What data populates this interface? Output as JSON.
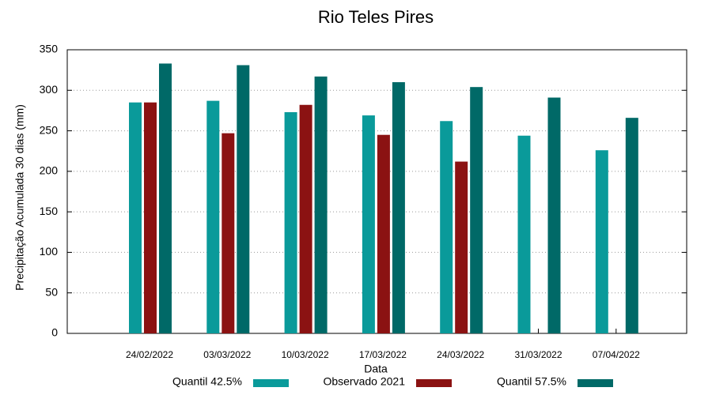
{
  "chart_data": {
    "type": "bar",
    "title": "Rio Teles Pires",
    "x_label": "Data",
    "y_label": "Precipitação Acumulada 30 dias (mm)",
    "categories": [
      "24/02/2022",
      "03/03/2022",
      "10/03/2022",
      "17/03/2022",
      "24/03/2022",
      "31/03/2022",
      "07/04/2022"
    ],
    "series": [
      {
        "name": "Quantil 42.5%",
        "color": "#0a9a9a",
        "values": [
          285,
          287,
          273,
          269,
          262,
          244,
          226
        ]
      },
      {
        "name": "Observado 2021",
        "color": "#8b1212",
        "values": [
          285,
          247,
          282,
          245,
          212,
          null,
          null
        ]
      },
      {
        "name": "Quantil 57.5%",
        "color": "#006967",
        "values": [
          333,
          331,
          317,
          310,
          304,
          291,
          266
        ]
      }
    ],
    "ylim": [
      0,
      350
    ],
    "yticks": [
      0,
      50,
      100,
      150,
      200,
      250,
      300,
      350
    ],
    "grid": true,
    "legend": "bottom"
  }
}
